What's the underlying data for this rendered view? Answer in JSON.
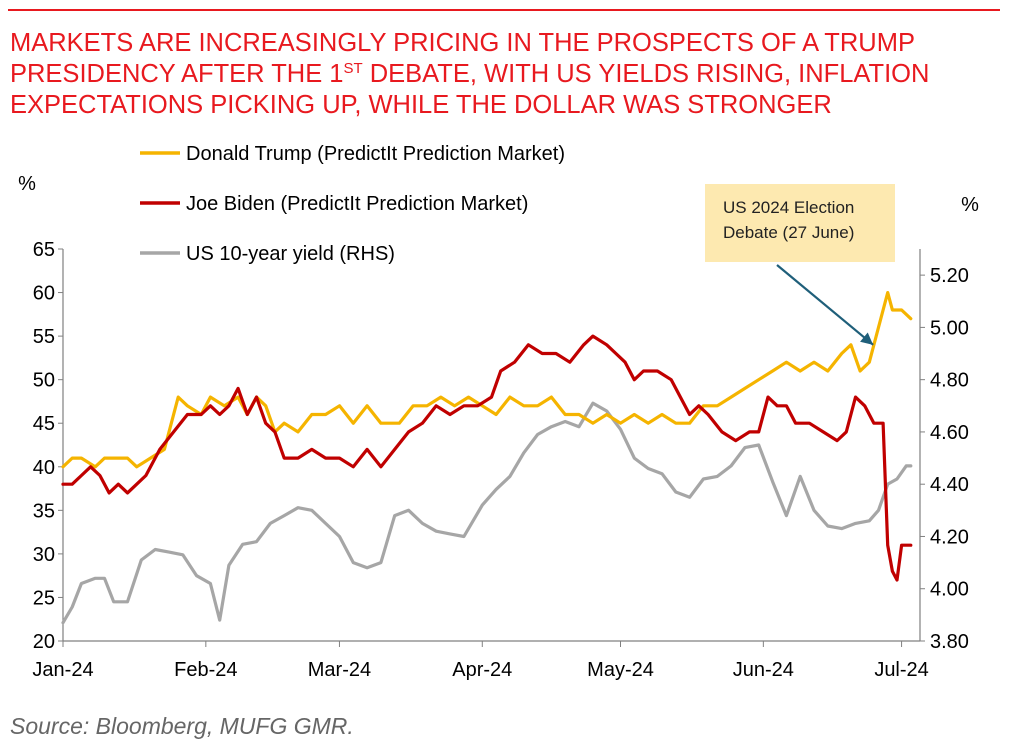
{
  "title_lines": [
    {
      "text": "MARKETS ARE INCREASINGLY PRICING IN THE PROSPECTS OF A TRUMP"
    },
    {
      "text": "PRESIDENCY AFTER THE 1",
      "sup": "ST",
      "rest": " DEBATE, WITH US YIELDS RISING, INFLATION"
    },
    {
      "text": "EXPECTATIONS PICKING UP, WHILE THE DOLLAR WAS STRONGER"
    }
  ],
  "source": "Source: Bloomberg, MUFG GMR.",
  "callout": {
    "lines": [
      "US 2024 Election",
      "Debate (27 June)"
    ]
  },
  "colors": {
    "trump": "#f5b400",
    "biden": "#c00000",
    "yield": "#a6a6a6",
    "title": "#e8191f",
    "arrow": "#1f5f7a"
  },
  "chart_data": {
    "type": "line",
    "x_range": [
      "2024-01-01",
      "2024-07-05"
    ],
    "x_ticks": [
      {
        "date": "2024-01-01",
        "label": "Jan-24"
      },
      {
        "date": "2024-02-01",
        "label": "Feb-24"
      },
      {
        "date": "2024-03-01",
        "label": "Mar-24"
      },
      {
        "date": "2024-04-01",
        "label": "Apr-24"
      },
      {
        "date": "2024-05-01",
        "label": "May-24"
      },
      {
        "date": "2024-06-01",
        "label": "Jun-24"
      },
      {
        "date": "2024-07-01",
        "label": "Jul-24"
      }
    ],
    "y_left": {
      "label": "%",
      "min": 20,
      "max": 65,
      "ticks": [
        "20",
        "25",
        "30",
        "35",
        "40",
        "45",
        "50",
        "55",
        "60",
        "65"
      ]
    },
    "y_right": {
      "label": "%",
      "min": 3.8,
      "max": 5.3,
      "ticks": [
        "3.80",
        "4.00",
        "4.20",
        "4.40",
        "4.60",
        "4.80",
        "5.00",
        "5.20"
      ]
    },
    "legend_position": "top-left",
    "annotation": {
      "date": "2024-06-27",
      "text": "US 2024 Election Debate (27 June)"
    },
    "series": [
      {
        "name": "Donald Trump (PredictIt Prediction Market)",
        "axis": "left",
        "color": "#f5b400",
        "points": [
          [
            "2024-01-01",
            40
          ],
          [
            "2024-01-03",
            41
          ],
          [
            "2024-01-05",
            41
          ],
          [
            "2024-01-08",
            40
          ],
          [
            "2024-01-10",
            41
          ],
          [
            "2024-01-15",
            41
          ],
          [
            "2024-01-17",
            40
          ],
          [
            "2024-01-20",
            41
          ],
          [
            "2024-01-23",
            42
          ],
          [
            "2024-01-26",
            48
          ],
          [
            "2024-01-28",
            47
          ],
          [
            "2024-01-31",
            46
          ],
          [
            "2024-02-02",
            48
          ],
          [
            "2024-02-05",
            47
          ],
          [
            "2024-02-08",
            48
          ],
          [
            "2024-02-10",
            46
          ],
          [
            "2024-02-12",
            48
          ],
          [
            "2024-02-14",
            47
          ],
          [
            "2024-02-16",
            44
          ],
          [
            "2024-02-18",
            45
          ],
          [
            "2024-02-21",
            44
          ],
          [
            "2024-02-24",
            46
          ],
          [
            "2024-02-27",
            46
          ],
          [
            "2024-03-01",
            47
          ],
          [
            "2024-03-04",
            45
          ],
          [
            "2024-03-07",
            47
          ],
          [
            "2024-03-10",
            45
          ],
          [
            "2024-03-14",
            45
          ],
          [
            "2024-03-17",
            47
          ],
          [
            "2024-03-20",
            47
          ],
          [
            "2024-03-23",
            48
          ],
          [
            "2024-03-26",
            47
          ],
          [
            "2024-03-29",
            48
          ],
          [
            "2024-04-01",
            47
          ],
          [
            "2024-04-04",
            46
          ],
          [
            "2024-04-07",
            48
          ],
          [
            "2024-04-10",
            47
          ],
          [
            "2024-04-13",
            47
          ],
          [
            "2024-04-16",
            48
          ],
          [
            "2024-04-19",
            46
          ],
          [
            "2024-04-22",
            46
          ],
          [
            "2024-04-25",
            45
          ],
          [
            "2024-04-28",
            46
          ],
          [
            "2024-05-01",
            45
          ],
          [
            "2024-05-04",
            46
          ],
          [
            "2024-05-07",
            45
          ],
          [
            "2024-05-10",
            46
          ],
          [
            "2024-05-13",
            45
          ],
          [
            "2024-05-16",
            45
          ],
          [
            "2024-05-19",
            47
          ],
          [
            "2024-05-22",
            47
          ],
          [
            "2024-05-25",
            48
          ],
          [
            "2024-05-28",
            49
          ],
          [
            "2024-05-31",
            50
          ],
          [
            "2024-06-03",
            51
          ],
          [
            "2024-06-06",
            52
          ],
          [
            "2024-06-09",
            51
          ],
          [
            "2024-06-12",
            52
          ],
          [
            "2024-06-15",
            51
          ],
          [
            "2024-06-18",
            53
          ],
          [
            "2024-06-20",
            54
          ],
          [
            "2024-06-22",
            51
          ],
          [
            "2024-06-24",
            52
          ],
          [
            "2024-06-26",
            56
          ],
          [
            "2024-06-28",
            60
          ],
          [
            "2024-06-29",
            58
          ],
          [
            "2024-07-01",
            58
          ],
          [
            "2024-07-03",
            57
          ]
        ]
      },
      {
        "name": "Joe Biden (PredictIt Prediction Market)",
        "axis": "left",
        "color": "#c00000",
        "points": [
          [
            "2024-01-01",
            38
          ],
          [
            "2024-01-03",
            38
          ],
          [
            "2024-01-05",
            39
          ],
          [
            "2024-01-07",
            40
          ],
          [
            "2024-01-09",
            39
          ],
          [
            "2024-01-11",
            37
          ],
          [
            "2024-01-13",
            38
          ],
          [
            "2024-01-15",
            37
          ],
          [
            "2024-01-17",
            38
          ],
          [
            "2024-01-19",
            39
          ],
          [
            "2024-01-22",
            42
          ],
          [
            "2024-01-25",
            44
          ],
          [
            "2024-01-28",
            46
          ],
          [
            "2024-01-31",
            46
          ],
          [
            "2024-02-02",
            47
          ],
          [
            "2024-02-04",
            46
          ],
          [
            "2024-02-06",
            47
          ],
          [
            "2024-02-08",
            49
          ],
          [
            "2024-02-10",
            46
          ],
          [
            "2024-02-12",
            48
          ],
          [
            "2024-02-14",
            45
          ],
          [
            "2024-02-16",
            44
          ],
          [
            "2024-02-18",
            41
          ],
          [
            "2024-02-21",
            41
          ],
          [
            "2024-02-24",
            42
          ],
          [
            "2024-02-27",
            41
          ],
          [
            "2024-03-01",
            41
          ],
          [
            "2024-03-04",
            40
          ],
          [
            "2024-03-07",
            42
          ],
          [
            "2024-03-10",
            40
          ],
          [
            "2024-03-13",
            42
          ],
          [
            "2024-03-16",
            44
          ],
          [
            "2024-03-19",
            45
          ],
          [
            "2024-03-22",
            47
          ],
          [
            "2024-03-25",
            46
          ],
          [
            "2024-03-28",
            47
          ],
          [
            "2024-03-31",
            47
          ],
          [
            "2024-04-03",
            48
          ],
          [
            "2024-04-05",
            51
          ],
          [
            "2024-04-08",
            52
          ],
          [
            "2024-04-11",
            54
          ],
          [
            "2024-04-14",
            53
          ],
          [
            "2024-04-17",
            53
          ],
          [
            "2024-04-20",
            52
          ],
          [
            "2024-04-23",
            54
          ],
          [
            "2024-04-25",
            55
          ],
          [
            "2024-04-28",
            54
          ],
          [
            "2024-04-30",
            53
          ],
          [
            "2024-05-02",
            52
          ],
          [
            "2024-05-04",
            50
          ],
          [
            "2024-05-06",
            51
          ],
          [
            "2024-05-09",
            51
          ],
          [
            "2024-05-12",
            50
          ],
          [
            "2024-05-14",
            48
          ],
          [
            "2024-05-16",
            46
          ],
          [
            "2024-05-18",
            47
          ],
          [
            "2024-05-20",
            46
          ],
          [
            "2024-05-23",
            44
          ],
          [
            "2024-05-26",
            43
          ],
          [
            "2024-05-29",
            44
          ],
          [
            "2024-05-31",
            44
          ],
          [
            "2024-06-02",
            48
          ],
          [
            "2024-06-04",
            47
          ],
          [
            "2024-06-06",
            47
          ],
          [
            "2024-06-08",
            45
          ],
          [
            "2024-06-11",
            45
          ],
          [
            "2024-06-14",
            44
          ],
          [
            "2024-06-17",
            43
          ],
          [
            "2024-06-19",
            44
          ],
          [
            "2024-06-21",
            48
          ],
          [
            "2024-06-23",
            47
          ],
          [
            "2024-06-25",
            45
          ],
          [
            "2024-06-27",
            45
          ],
          [
            "2024-06-28",
            31
          ],
          [
            "2024-06-29",
            28
          ],
          [
            "2024-06-30",
            27
          ],
          [
            "2024-07-01",
            31
          ],
          [
            "2024-07-03",
            31
          ]
        ]
      },
      {
        "name": "US 10-year yield (RHS)",
        "axis": "right",
        "color": "#a6a6a6",
        "points": [
          [
            "2024-01-01",
            3.87
          ],
          [
            "2024-01-03",
            3.93
          ],
          [
            "2024-01-05",
            4.02
          ],
          [
            "2024-01-08",
            4.04
          ],
          [
            "2024-01-10",
            4.04
          ],
          [
            "2024-01-12",
            3.95
          ],
          [
            "2024-01-15",
            3.95
          ],
          [
            "2024-01-18",
            4.11
          ],
          [
            "2024-01-21",
            4.15
          ],
          [
            "2024-01-24",
            4.14
          ],
          [
            "2024-01-27",
            4.13
          ],
          [
            "2024-01-30",
            4.05
          ],
          [
            "2024-02-02",
            4.02
          ],
          [
            "2024-02-04",
            3.88
          ],
          [
            "2024-02-06",
            4.09
          ],
          [
            "2024-02-09",
            4.17
          ],
          [
            "2024-02-12",
            4.18
          ],
          [
            "2024-02-15",
            4.25
          ],
          [
            "2024-02-18",
            4.28
          ],
          [
            "2024-02-21",
            4.31
          ],
          [
            "2024-02-24",
            4.3
          ],
          [
            "2024-02-27",
            4.25
          ],
          [
            "2024-03-01",
            4.2
          ],
          [
            "2024-03-04",
            4.1
          ],
          [
            "2024-03-07",
            4.08
          ],
          [
            "2024-03-10",
            4.1
          ],
          [
            "2024-03-13",
            4.28
          ],
          [
            "2024-03-16",
            4.3
          ],
          [
            "2024-03-19",
            4.25
          ],
          [
            "2024-03-22",
            4.22
          ],
          [
            "2024-03-25",
            4.21
          ],
          [
            "2024-03-28",
            4.2
          ],
          [
            "2024-04-01",
            4.32
          ],
          [
            "2024-04-04",
            4.38
          ],
          [
            "2024-04-07",
            4.43
          ],
          [
            "2024-04-10",
            4.52
          ],
          [
            "2024-04-13",
            4.59
          ],
          [
            "2024-04-16",
            4.62
          ],
          [
            "2024-04-19",
            4.64
          ],
          [
            "2024-04-22",
            4.62
          ],
          [
            "2024-04-25",
            4.71
          ],
          [
            "2024-04-28",
            4.68
          ],
          [
            "2024-05-01",
            4.61
          ],
          [
            "2024-05-04",
            4.5
          ],
          [
            "2024-05-07",
            4.46
          ],
          [
            "2024-05-10",
            4.44
          ],
          [
            "2024-05-13",
            4.37
          ],
          [
            "2024-05-16",
            4.35
          ],
          [
            "2024-05-19",
            4.42
          ],
          [
            "2024-05-22",
            4.43
          ],
          [
            "2024-05-25",
            4.47
          ],
          [
            "2024-05-28",
            4.54
          ],
          [
            "2024-05-31",
            4.55
          ],
          [
            "2024-06-03",
            4.41
          ],
          [
            "2024-06-06",
            4.28
          ],
          [
            "2024-06-09",
            4.43
          ],
          [
            "2024-06-12",
            4.3
          ],
          [
            "2024-06-15",
            4.24
          ],
          [
            "2024-06-18",
            4.23
          ],
          [
            "2024-06-21",
            4.25
          ],
          [
            "2024-06-24",
            4.26
          ],
          [
            "2024-06-26",
            4.3
          ],
          [
            "2024-06-28",
            4.4
          ],
          [
            "2024-06-30",
            4.42
          ],
          [
            "2024-07-02",
            4.47
          ],
          [
            "2024-07-03",
            4.47
          ]
        ]
      }
    ]
  }
}
